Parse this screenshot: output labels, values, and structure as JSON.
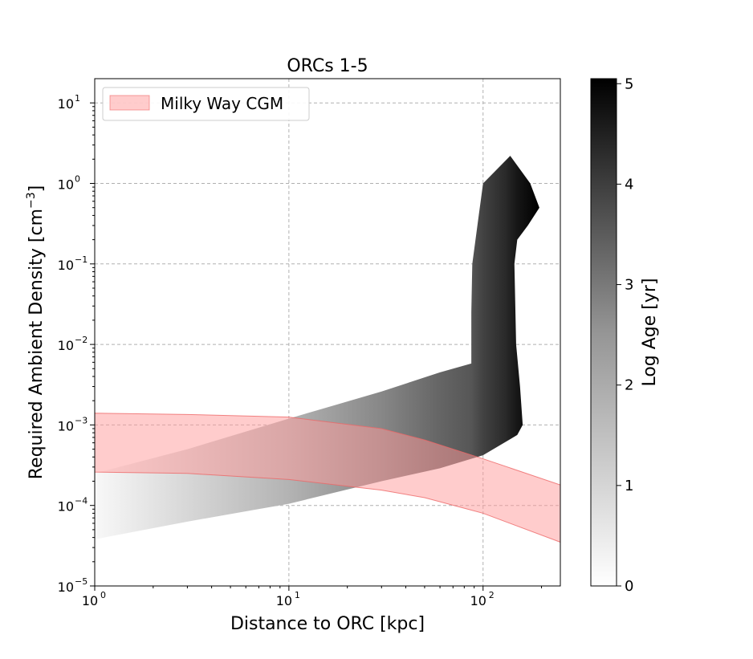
{
  "chart_data": {
    "type": "heatmap",
    "title": "ORCs 1-5",
    "xlabel": "Distance to ORC [kpc]",
    "ylabel_main": "Required Ambient Density [cm",
    "ylabel_sup": "−3",
    "ylabel_close": "]",
    "xscale": "log",
    "yscale": "log",
    "xlim": [
      1,
      250
    ],
    "ylim": [
      1e-05,
      20
    ],
    "grid": true,
    "x_ticks": [
      {
        "value": 1,
        "base": "10",
        "exp": "0"
      },
      {
        "value": 10,
        "base": "10",
        "exp": "1"
      },
      {
        "value": 100,
        "base": "10",
        "exp": "2"
      }
    ],
    "y_ticks": [
      {
        "value": 1e-05,
        "base": "10",
        "exp": "−5"
      },
      {
        "value": 0.0001,
        "base": "10",
        "exp": "−4"
      },
      {
        "value": 0.001,
        "base": "10",
        "exp": "−3"
      },
      {
        "value": 0.01,
        "base": "10",
        "exp": "−2"
      },
      {
        "value": 0.1,
        "base": "10",
        "exp": "−1"
      },
      {
        "value": 1,
        "base": "10",
        "exp": "0"
      },
      {
        "value": 10,
        "base": "10",
        "exp": "1"
      }
    ],
    "legend": {
      "position": "top-left",
      "entries": [
        {
          "label": "Milky Way CGM",
          "color": "#ff9999"
        }
      ]
    },
    "colorbar": {
      "label": "Log Age [yr]",
      "range": [
        0,
        5.05
      ],
      "ticks": [
        "0",
        "1",
        "2",
        "3",
        "4",
        "5"
      ],
      "cmap": "Greys"
    },
    "region_lower_boundary": [
      [
        1,
        3.8e-05
      ],
      [
        3,
        6.3e-05
      ],
      [
        10,
        0.000105
      ],
      [
        30,
        0.0002
      ],
      [
        60,
        0.00029
      ],
      [
        100,
        0.00042
      ],
      [
        150,
        0.00075
      ],
      [
        160,
        0.001
      ]
    ],
    "region_upper_boundary": [
      [
        1,
        0.00025
      ],
      [
        3,
        0.0005
      ],
      [
        10,
        0.0012
      ],
      [
        30,
        0.0026
      ],
      [
        60,
        0.0045
      ],
      [
        87,
        0.0058
      ],
      [
        87,
        0.025
      ],
      [
        88,
        0.1
      ],
      [
        95,
        0.4
      ],
      [
        100,
        1.0
      ],
      [
        130,
        1.9
      ],
      [
        138,
        2.2
      ],
      [
        175,
        1.0
      ],
      [
        195,
        0.5
      ],
      [
        170,
        0.3
      ],
      [
        150,
        0.2
      ],
      [
        145,
        0.1
      ],
      [
        148,
        0.01
      ],
      [
        155,
        0.003
      ],
      [
        160,
        0.001
      ]
    ],
    "age_gradient": [
      [
        1,
        0.0
      ],
      [
        10,
        1.4
      ],
      [
        30,
        2.3
      ],
      [
        60,
        3.0
      ],
      [
        87,
        3.3
      ],
      [
        100,
        3.7
      ],
      [
        130,
        4.2
      ],
      [
        150,
        4.6
      ],
      [
        190,
        5.0
      ]
    ],
    "cgm_band": {
      "label": "Milky Way CGM",
      "upper": [
        [
          1,
          0.0014
        ],
        [
          3,
          0.00135
        ],
        [
          10,
          0.00125
        ],
        [
          30,
          0.0009
        ],
        [
          50,
          0.00065
        ],
        [
          100,
          0.00038
        ],
        [
          250,
          0.00018
        ]
      ],
      "lower": [
        [
          1,
          0.00026
        ],
        [
          3,
          0.00025
        ],
        [
          10,
          0.00021
        ],
        [
          30,
          0.000155
        ],
        [
          50,
          0.000125
        ],
        [
          100,
          8e-05
        ],
        [
          250,
          3.5e-05
        ]
      ]
    }
  }
}
